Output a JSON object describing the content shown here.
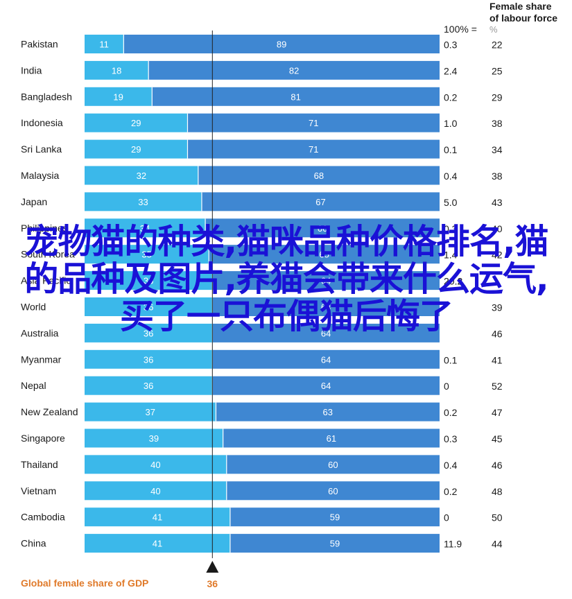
{
  "chart_data": {
    "type": "bar",
    "stacked": true,
    "categories": [
      "Pakistan",
      "India",
      "Bangladesh",
      "Indonesia",
      "Sri Lanka",
      "Malaysia",
      "Japan",
      "Philippines",
      "South Korea",
      "Asia Pacific",
      "World",
      "Australia",
      "Myanmar",
      "Nepal",
      "New Zealand",
      "Singapore",
      "Thailand",
      "Vietnam",
      "Cambodia",
      "China"
    ],
    "series": [
      {
        "name": "",
        "values": [
          11,
          18,
          19,
          29,
          29,
          32,
          33,
          34,
          35,
          36,
          36,
          36,
          36,
          36,
          37,
          39,
          40,
          40,
          41,
          41
        ]
      },
      {
        "name": "",
        "values": [
          89,
          82,
          81,
          71,
          71,
          68,
          67,
          66,
          65,
          64,
          64,
          64,
          64,
          64,
          63,
          61,
          60,
          60,
          59,
          59
        ]
      }
    ],
    "xlim": [
      0,
      100
    ],
    "col_headers": {
      "total": "100% =",
      "female_share": "Female share of labour force",
      "female_share_unit": "%"
    },
    "total_col": [
      "0.3",
      "2.4",
      "0.2",
      "1.0",
      "0.1",
      "0.4",
      "5.0",
      "0.3",
      "1.4",
      "20.2",
      "",
      "",
      "0.1",
      "0",
      "0.2",
      "0.3",
      "0.4",
      "0.2",
      "0",
      "11.9"
    ],
    "female_share_col": [
      "22",
      "25",
      "29",
      "38",
      "34",
      "38",
      "43",
      "40",
      "42",
      "",
      "39",
      "46",
      "41",
      "52",
      "47",
      "45",
      "46",
      "48",
      "50",
      "44"
    ],
    "reference": {
      "label": "Global female share of GDP",
      "value": 36
    },
    "colors": {
      "left": "#3bb8ea",
      "right": "#3f87d2",
      "reference_line": "#222222",
      "footer": "#e07a2a",
      "overlay": "#1a11d6"
    }
  },
  "overlay_text": "宠物猫的种类,猫咪品种价格排名,猫的品种及图片,养猫会带来什么运气,买了一只布偶猫后悔了"
}
